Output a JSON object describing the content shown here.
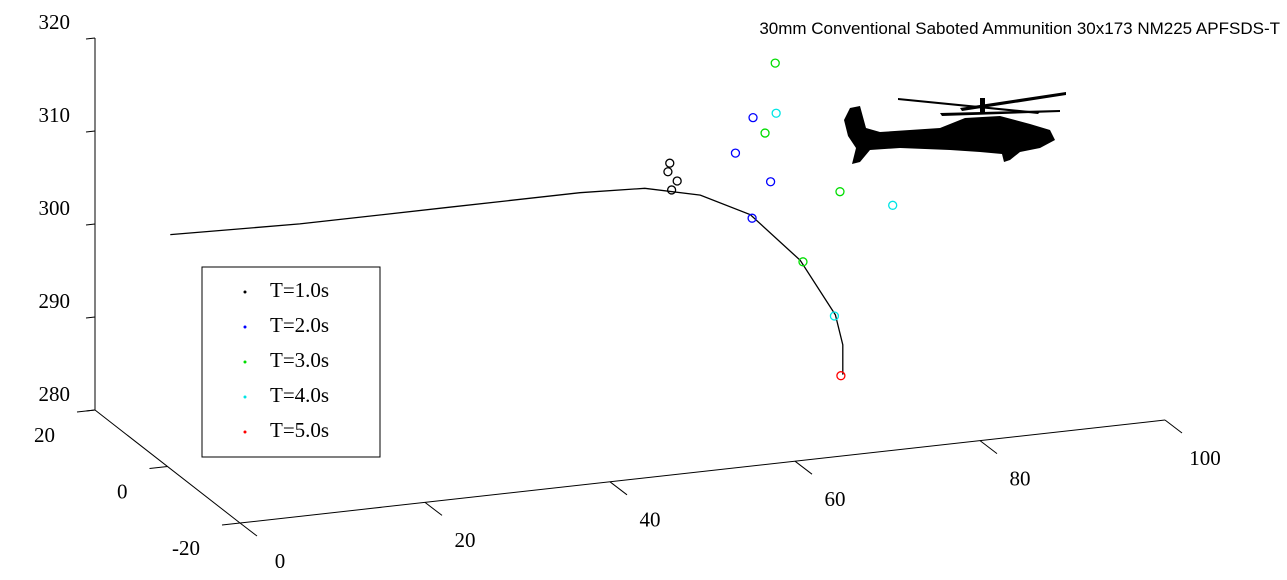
{
  "chart_data": {
    "type": "scatter3d",
    "title": "30mm Conventional Saboted Ammunition 30x173 NM225 APFSDS-T",
    "xlim": [
      0,
      100
    ],
    "ylim": [
      -20,
      20
    ],
    "zlim": [
      280,
      320
    ],
    "xticks": [
      0,
      20,
      40,
      60,
      80,
      100
    ],
    "yticks": [
      -20,
      0,
      20
    ],
    "zticks": [
      280,
      290,
      300,
      310,
      320
    ],
    "grid": false,
    "legend": "middle-left",
    "series": [
      {
        "mode": "line",
        "color": "#000000",
        "x": [
          0.3,
          14.3,
          30.5,
          44.6,
          51.6,
          57.6,
          63.0,
          68.4,
          72.2,
          73.0,
          73.0
        ],
        "y": [
          0,
          0,
          0,
          0,
          0,
          0,
          0,
          0,
          0,
          0,
          0
        ],
        "z": [
          304.9,
          304.5,
          304.5,
          304.5,
          304.2,
          302.8,
          300.1,
          294.6,
          288.3,
          285.0,
          281.8
        ]
      },
      {
        "name": "T=1.0s",
        "mode": "markers",
        "color": "#000000",
        "x": [
          54.3,
          54.1,
          55.1,
          54.5
        ],
        "y": [
          0,
          0,
          0,
          0
        ],
        "z": [
          306.6,
          305.7,
          304.6,
          303.7
        ]
      },
      {
        "name": "T=2.0s",
        "mode": "markers",
        "color": "#0000ff",
        "x": [
          63.2,
          61.4,
          63.3,
          65.2
        ],
        "y": [
          0,
          0,
          0,
          0
        ],
        "z": [
          299.7,
          306.9,
          310.5,
          303.4
        ]
      },
      {
        "name": "T=3.0s",
        "mode": "markers",
        "color": "#00dd00",
        "x": [
          68.7,
          64.6,
          65.7,
          72.7
        ],
        "y": [
          0,
          0,
          0,
          0
        ],
        "z": [
          294.4,
          308.7,
          316.1,
          301.5
        ]
      },
      {
        "name": "T=4.0s",
        "mode": "markers",
        "color": "#00e5e5",
        "x": [
          72.1,
          65.8,
          78.4
        ],
        "y": [
          0,
          0,
          0
        ],
        "z": [
          288.2,
          310.7,
          299.4
        ]
      },
      {
        "name": "T=5.0s",
        "mode": "markers",
        "color": "#ff0000",
        "x": [
          72.8
        ],
        "y": [
          0
        ],
        "z": [
          281.7
        ]
      }
    ]
  }
}
